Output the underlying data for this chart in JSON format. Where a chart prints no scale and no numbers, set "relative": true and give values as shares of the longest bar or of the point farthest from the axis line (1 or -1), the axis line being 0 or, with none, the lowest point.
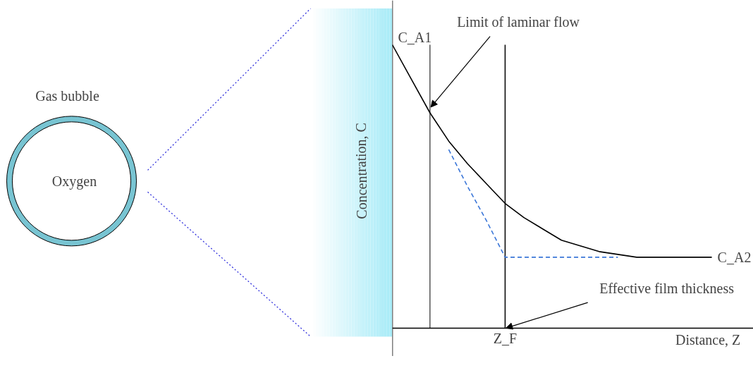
{
  "chart_data": {
    "type": "line",
    "relative": true,
    "ylabel": "Concentration, C",
    "xlabel": "Distance, Z⃗",
    "categories": [
      null,
      null,
      null,
      null,
      null,
      null,
      null,
      null,
      null,
      null,
      null,
      null,
      null,
      null,
      null,
      null,
      null,
      null
    ],
    "marker": "none",
    "series": [
      {
        "color": "#000000",
        "line_style": "solid",
        "values": [
          1.0,
          0.88,
          0.76,
          0.66,
          0.58,
          0.51,
          0.44,
          0.39,
          0.35,
          0.31,
          0.29,
          0.27,
          0.26,
          0.25,
          0.25,
          0.25,
          0.25,
          0.25
        ]
      },
      {
        "color": "#3a76d8",
        "line_style": "dashed",
        "values": [
          null,
          null,
          null,
          0.63,
          0.5,
          0.38,
          0.25,
          0.25,
          0.25,
          0.25,
          0.25,
          0.25,
          0.25,
          null,
          null,
          null,
          null,
          null
        ]
      }
    ],
    "ref_lines": [
      {
        "axis": "x",
        "color": "#555555"
      },
      {
        "axis": "x",
        "label": "Z_F",
        "color": "#000000"
      }
    ],
    "annotations": [
      "C_A1",
      "C_A2",
      "Limit of laminar flow",
      "Effective film thickness",
      "Gas bubble",
      "Oxygen"
    ]
  }
}
